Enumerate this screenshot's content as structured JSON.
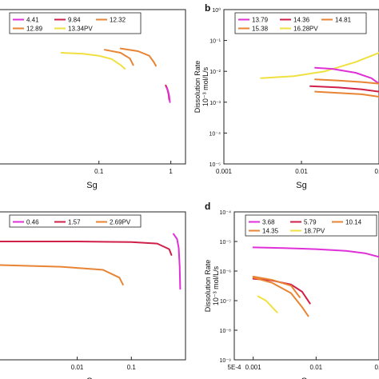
{
  "figure": {
    "background": "#ffffff"
  },
  "chart_data": [
    {
      "panel_label": "",
      "type": "line",
      "xscale": "log",
      "yscale": "log",
      "xlabel": "Sg",
      "ylabel_line1": "",
      "ylabel_line2": "",
      "xlim": [
        0.004,
        1.6
      ],
      "ylim": [
        1e-05,
        1
      ],
      "xticks": [
        {
          "v": 0.1,
          "label": "0.1"
        },
        {
          "v": 1,
          "label": "1"
        }
      ],
      "yticks": [],
      "legend": {
        "rows": [
          [
            {
              "label": "4.41",
              "color": "#e030d8"
            },
            {
              "label": "9.84",
              "color": "#d0204a"
            },
            {
              "label": "12.32",
              "color": "#e88434"
            }
          ],
          [
            {
              "label": "12.89",
              "color": "#e88434"
            },
            {
              "label": "13.34PV",
              "color": "#f0e040"
            }
          ]
        ]
      },
      "series": [
        {
          "label": "13.34PV",
          "color": "#f0e040",
          "x": [
            0.03,
            0.06,
            0.1,
            0.15,
            0.2,
            0.23
          ],
          "y": [
            0.04,
            0.037,
            0.032,
            0.025,
            0.016,
            0.012
          ]
        },
        {
          "label": "12.89",
          "color": "#e88434",
          "x": [
            0.12,
            0.2,
            0.27,
            0.3
          ],
          "y": [
            0.05,
            0.04,
            0.026,
            0.016
          ]
        },
        {
          "label": "12.32",
          "color": "#e88434",
          "x": [
            0.2,
            0.35,
            0.5,
            0.58,
            0.62
          ],
          "y": [
            0.055,
            0.045,
            0.032,
            0.02,
            0.015
          ]
        },
        {
          "label": "9.84",
          "color": "#d0204a",
          "x": [
            0.85,
            0.9,
            0.93,
            0.95
          ],
          "y": [
            0.0035,
            0.0025,
            0.0018,
            0.0012
          ]
        },
        {
          "label": "4.41",
          "color": "#e030d8",
          "x": [
            0.88,
            0.92,
            0.95,
            0.97
          ],
          "y": [
            0.003,
            0.0022,
            0.0016,
            0.001
          ]
        }
      ]
    },
    {
      "panel_label": "b",
      "type": "line",
      "xscale": "log",
      "yscale": "log",
      "xlabel": "Sg",
      "ylabel_line1": "Dissolution Rate",
      "ylabel_line2": "10⁻³ mol/L/s",
      "xlim": [
        0.001,
        0.1
      ],
      "ylim": [
        1e-05,
        1
      ],
      "xticks": [
        {
          "v": 0.001,
          "label": "0.001"
        },
        {
          "v": 0.01,
          "label": "0.01"
        },
        {
          "v": 0.1,
          "label": "0.1"
        }
      ],
      "yticks": [
        {
          "v": 1,
          "label": "10⁰"
        },
        {
          "v": 0.1,
          "label": "10⁻¹"
        },
        {
          "v": 0.01,
          "label": "10⁻²"
        },
        {
          "v": 0.001,
          "label": "10⁻³"
        },
        {
          "v": 0.0001,
          "label": "10⁻⁴"
        },
        {
          "v": 1e-05,
          "label": "10⁻⁵"
        }
      ],
      "legend": {
        "rows": [
          [
            {
              "label": "13.79",
              "color": "#e030d8"
            },
            {
              "label": "14.36",
              "color": "#d0204a"
            },
            {
              "label": "14.81",
              "color": "#e88434"
            }
          ],
          [
            {
              "label": "15.38",
              "color": "#e88434"
            },
            {
              "label": "16.28PV",
              "color": "#f0e040"
            }
          ]
        ]
      },
      "series": [
        {
          "label": "16.28PV",
          "color": "#f0e040",
          "x": [
            0.003,
            0.008,
            0.02,
            0.05,
            0.1
          ],
          "y": [
            0.006,
            0.007,
            0.01,
            0.02,
            0.04
          ]
        },
        {
          "label": "13.79",
          "color": "#e030d8",
          "x": [
            0.015,
            0.025,
            0.05,
            0.08,
            0.1
          ],
          "y": [
            0.013,
            0.012,
            0.009,
            0.006,
            0.004
          ]
        },
        {
          "label": "14.81",
          "color": "#e88434",
          "x": [
            0.015,
            0.03,
            0.06,
            0.1
          ],
          "y": [
            0.0055,
            0.005,
            0.0045,
            0.004
          ]
        },
        {
          "label": "14.36",
          "color": "#d0204a",
          "x": [
            0.013,
            0.03,
            0.06,
            0.1
          ],
          "y": [
            0.0033,
            0.003,
            0.0026,
            0.0022
          ]
        },
        {
          "label": "15.38",
          "color": "#e88434",
          "x": [
            0.015,
            0.03,
            0.06,
            0.1
          ],
          "y": [
            0.0022,
            0.002,
            0.0018,
            0.0015
          ]
        }
      ]
    },
    {
      "panel_label": "",
      "type": "line",
      "xscale": "log",
      "yscale": "log",
      "xlabel": "Sg",
      "ylabel_line1": "",
      "ylabel_line2": "",
      "xlim": [
        0.00035,
        1.0
      ],
      "ylim": [
        1e-09,
        0.0001
      ],
      "xticks": [
        {
          "v": 0.01,
          "label": "0.01"
        },
        {
          "v": 0.1,
          "label": "0.1"
        }
      ],
      "yticks": [],
      "legend": {
        "rows": [
          [
            {
              "label": "0.46",
              "color": "#e030d8"
            },
            {
              "label": "1.57",
              "color": "#d0204a"
            },
            {
              "label": "2.69PV",
              "color": "#e88434"
            }
          ]
        ]
      },
      "series": [
        {
          "label": "1.57",
          "color": "#d0204a",
          "x": [
            0.00035,
            0.01,
            0.1,
            0.3,
            0.5,
            0.55
          ],
          "y": [
            1e-05,
            1e-05,
            9.5e-06,
            8.5e-06,
            5.5e-06,
            3.5e-06
          ]
        },
        {
          "label": "2.69PV",
          "color": "#e88434",
          "x": [
            0.00035,
            0.005,
            0.03,
            0.06,
            0.07
          ],
          "y": [
            1.6e-06,
            1.4e-06,
            1.1e-06,
            6e-07,
            3.5e-07
          ]
        },
        {
          "label": "0.46",
          "color": "#e030d8",
          "x": [
            0.6,
            0.7,
            0.75,
            0.78,
            0.8
          ],
          "y": [
            1.8e-05,
            1.2e-05,
            6e-06,
            1.5e-06,
            2.5e-07
          ]
        }
      ]
    },
    {
      "panel_label": "d",
      "type": "line",
      "xscale": "log",
      "yscale": "log",
      "xlabel": "Sg",
      "ylabel_line1": "Dissolution Rate",
      "ylabel_line2": "10⁻³ mol/L/s",
      "xlim": [
        0.0005,
        0.1
      ],
      "ylim": [
        1e-09,
        0.0001
      ],
      "xticks": [
        {
          "v": 0.0005,
          "label": "5E-4"
        },
        {
          "v": 0.001,
          "label": "0.001"
        },
        {
          "v": 0.01,
          "label": "0.01"
        },
        {
          "v": 0.1,
          "label": "0.1"
        }
      ],
      "yticks": [
        {
          "v": 0.0001,
          "label": "10⁻⁴"
        },
        {
          "v": 1e-05,
          "label": "10⁻⁵"
        },
        {
          "v": 1e-06,
          "label": "10⁻⁶"
        },
        {
          "v": 1e-07,
          "label": "10⁻⁷"
        },
        {
          "v": 1e-08,
          "label": "10⁻⁸"
        },
        {
          "v": 1e-09,
          "label": "10⁻⁹"
        }
      ],
      "legend": {
        "rows": [
          [
            {
              "label": "3.68",
              "color": "#e030d8"
            },
            {
              "label": "5.79",
              "color": "#d0204a"
            },
            {
              "label": "10.14",
              "color": "#e88434"
            }
          ],
          [
            {
              "label": "14.35",
              "color": "#e88434"
            },
            {
              "label": "18.7PV",
              "color": "#f0e040"
            }
          ]
        ]
      },
      "series": [
        {
          "label": "3.68",
          "color": "#e030d8",
          "x": [
            0.001,
            0.003,
            0.01,
            0.03,
            0.06,
            0.1
          ],
          "y": [
            6.3e-06,
            6e-06,
            5.5e-06,
            4.8e-06,
            4e-06,
            3e-06
          ]
        },
        {
          "label": "5.79",
          "color": "#d0204a",
          "x": [
            0.001,
            0.002,
            0.004,
            0.006,
            0.008
          ],
          "y": [
            5.5e-07,
            4.8e-07,
            3.5e-07,
            2e-07,
            8e-08
          ]
        },
        {
          "label": "10.14",
          "color": "#e88434",
          "x": [
            0.001,
            0.002,
            0.004,
            0.0055
          ],
          "y": [
            6.5e-07,
            5e-07,
            3.2e-07,
            1.3e-07
          ]
        },
        {
          "label": "14.35",
          "color": "#e88434",
          "x": [
            0.001,
            0.002,
            0.004,
            0.006,
            0.0075
          ],
          "y": [
            6e-07,
            4e-07,
            1.8e-07,
            6e-08,
            3e-08
          ]
        },
        {
          "label": "18.7PV",
          "color": "#f0e040",
          "x": [
            0.0012,
            0.0016,
            0.002,
            0.0024
          ],
          "y": [
            1.4e-07,
            1e-07,
            6e-08,
            4e-08
          ]
        }
      ]
    }
  ]
}
